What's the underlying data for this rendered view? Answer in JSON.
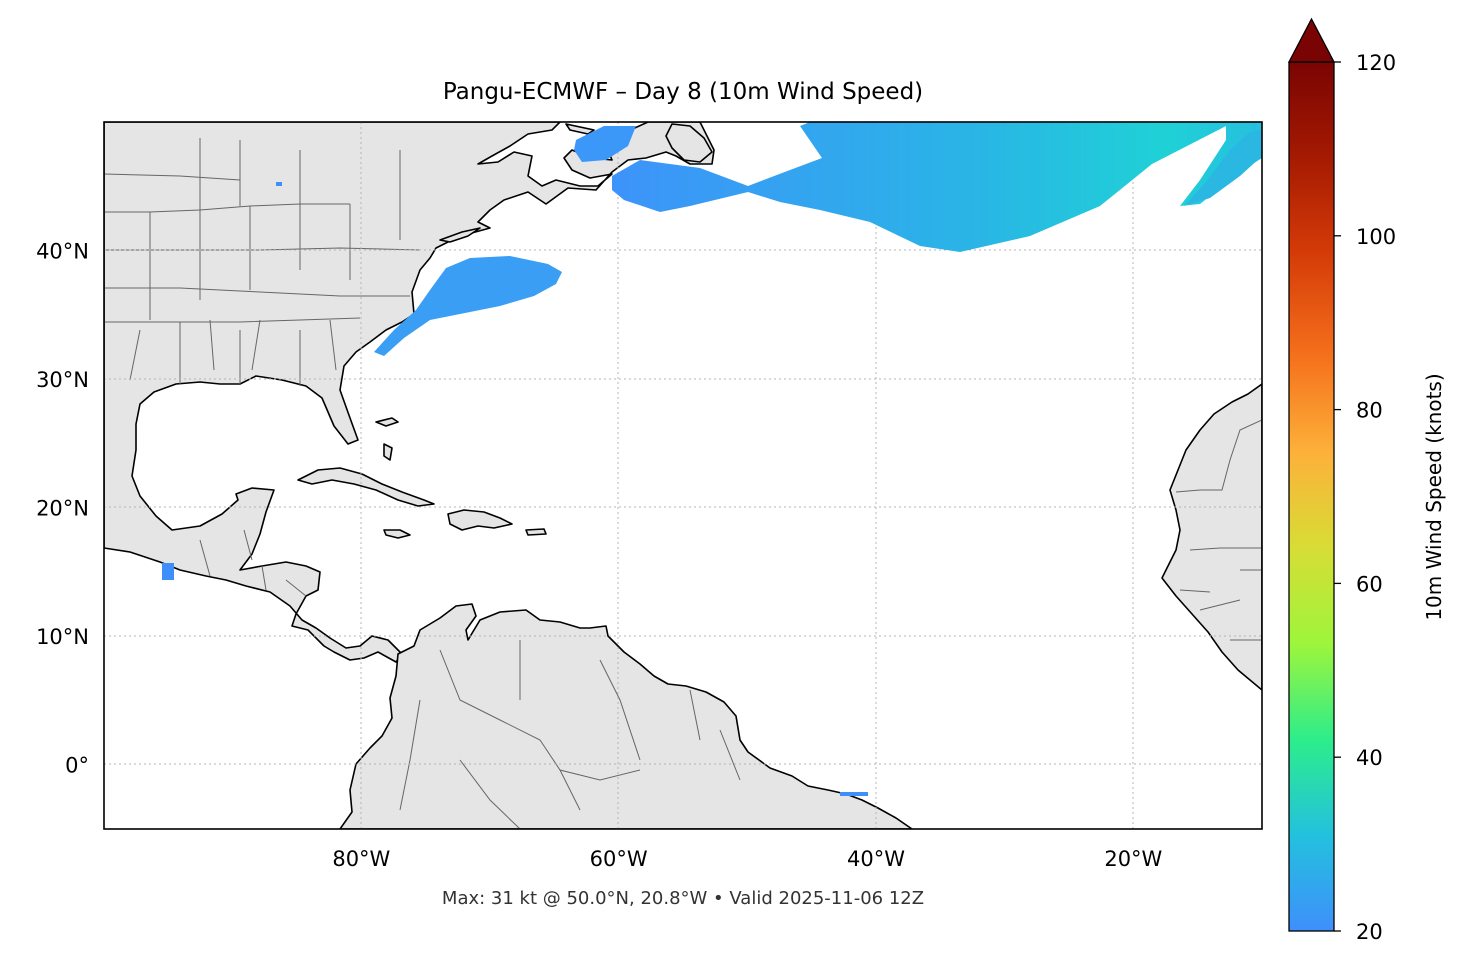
{
  "title": "Pangu-ECMWF – Day 8 (10m Wind Speed)",
  "footer": "Max: 31 kt @ 50.0°N, 20.8°W • Valid 2025-11-06 12Z",
  "map": {
    "lon_range": [
      -100,
      -10
    ],
    "lat_range": [
      -5,
      50
    ],
    "lon_ticks": [
      {
        "value": -80,
        "label": "80°W"
      },
      {
        "value": -60,
        "label": "60°W"
      },
      {
        "value": -40,
        "label": "40°W"
      },
      {
        "value": -20,
        "label": "20°W"
      }
    ],
    "lat_ticks": [
      {
        "value": 40,
        "label": "40°N"
      },
      {
        "value": 30,
        "label": "30°N"
      },
      {
        "value": 20,
        "label": "20°N"
      },
      {
        "value": 10,
        "label": "10°N"
      },
      {
        "value": 0,
        "label": "0°"
      }
    ],
    "gridlines": true,
    "land_color": "#e5e5e5",
    "ocean_color": "#ffffff",
    "coastline_color": "#000000",
    "border_color": "#666666"
  },
  "colorbar": {
    "label": "10m Wind Speed (knots)",
    "range": [
      20,
      120
    ],
    "extend": "max",
    "ticks": [
      {
        "value": 20,
        "label": "20"
      },
      {
        "value": 40,
        "label": "40"
      },
      {
        "value": 60,
        "label": "60"
      },
      {
        "value": 80,
        "label": "80"
      },
      {
        "value": 100,
        "label": "100"
      },
      {
        "value": 120,
        "label": "120"
      }
    ],
    "colors": [
      "#3f8ffb",
      "#23c1de",
      "#2ded8b",
      "#9df53c",
      "#d7dd35",
      "#fdb13a",
      "#f5711c",
      "#d53b08",
      "#a51a02",
      "#7a0403"
    ]
  },
  "wind_features": [
    {
      "name": "north-atlantic-jet",
      "max_kt": 31,
      "peak_lat": 50.0,
      "peak_lon": -20.8
    },
    {
      "name": "us-east-coast-band",
      "approx_kt": 23
    },
    {
      "name": "gulf-of-st-lawrence-patch",
      "approx_kt": 22
    },
    {
      "name": "east-atlantic-streak",
      "approx_kt": 23
    }
  ]
}
